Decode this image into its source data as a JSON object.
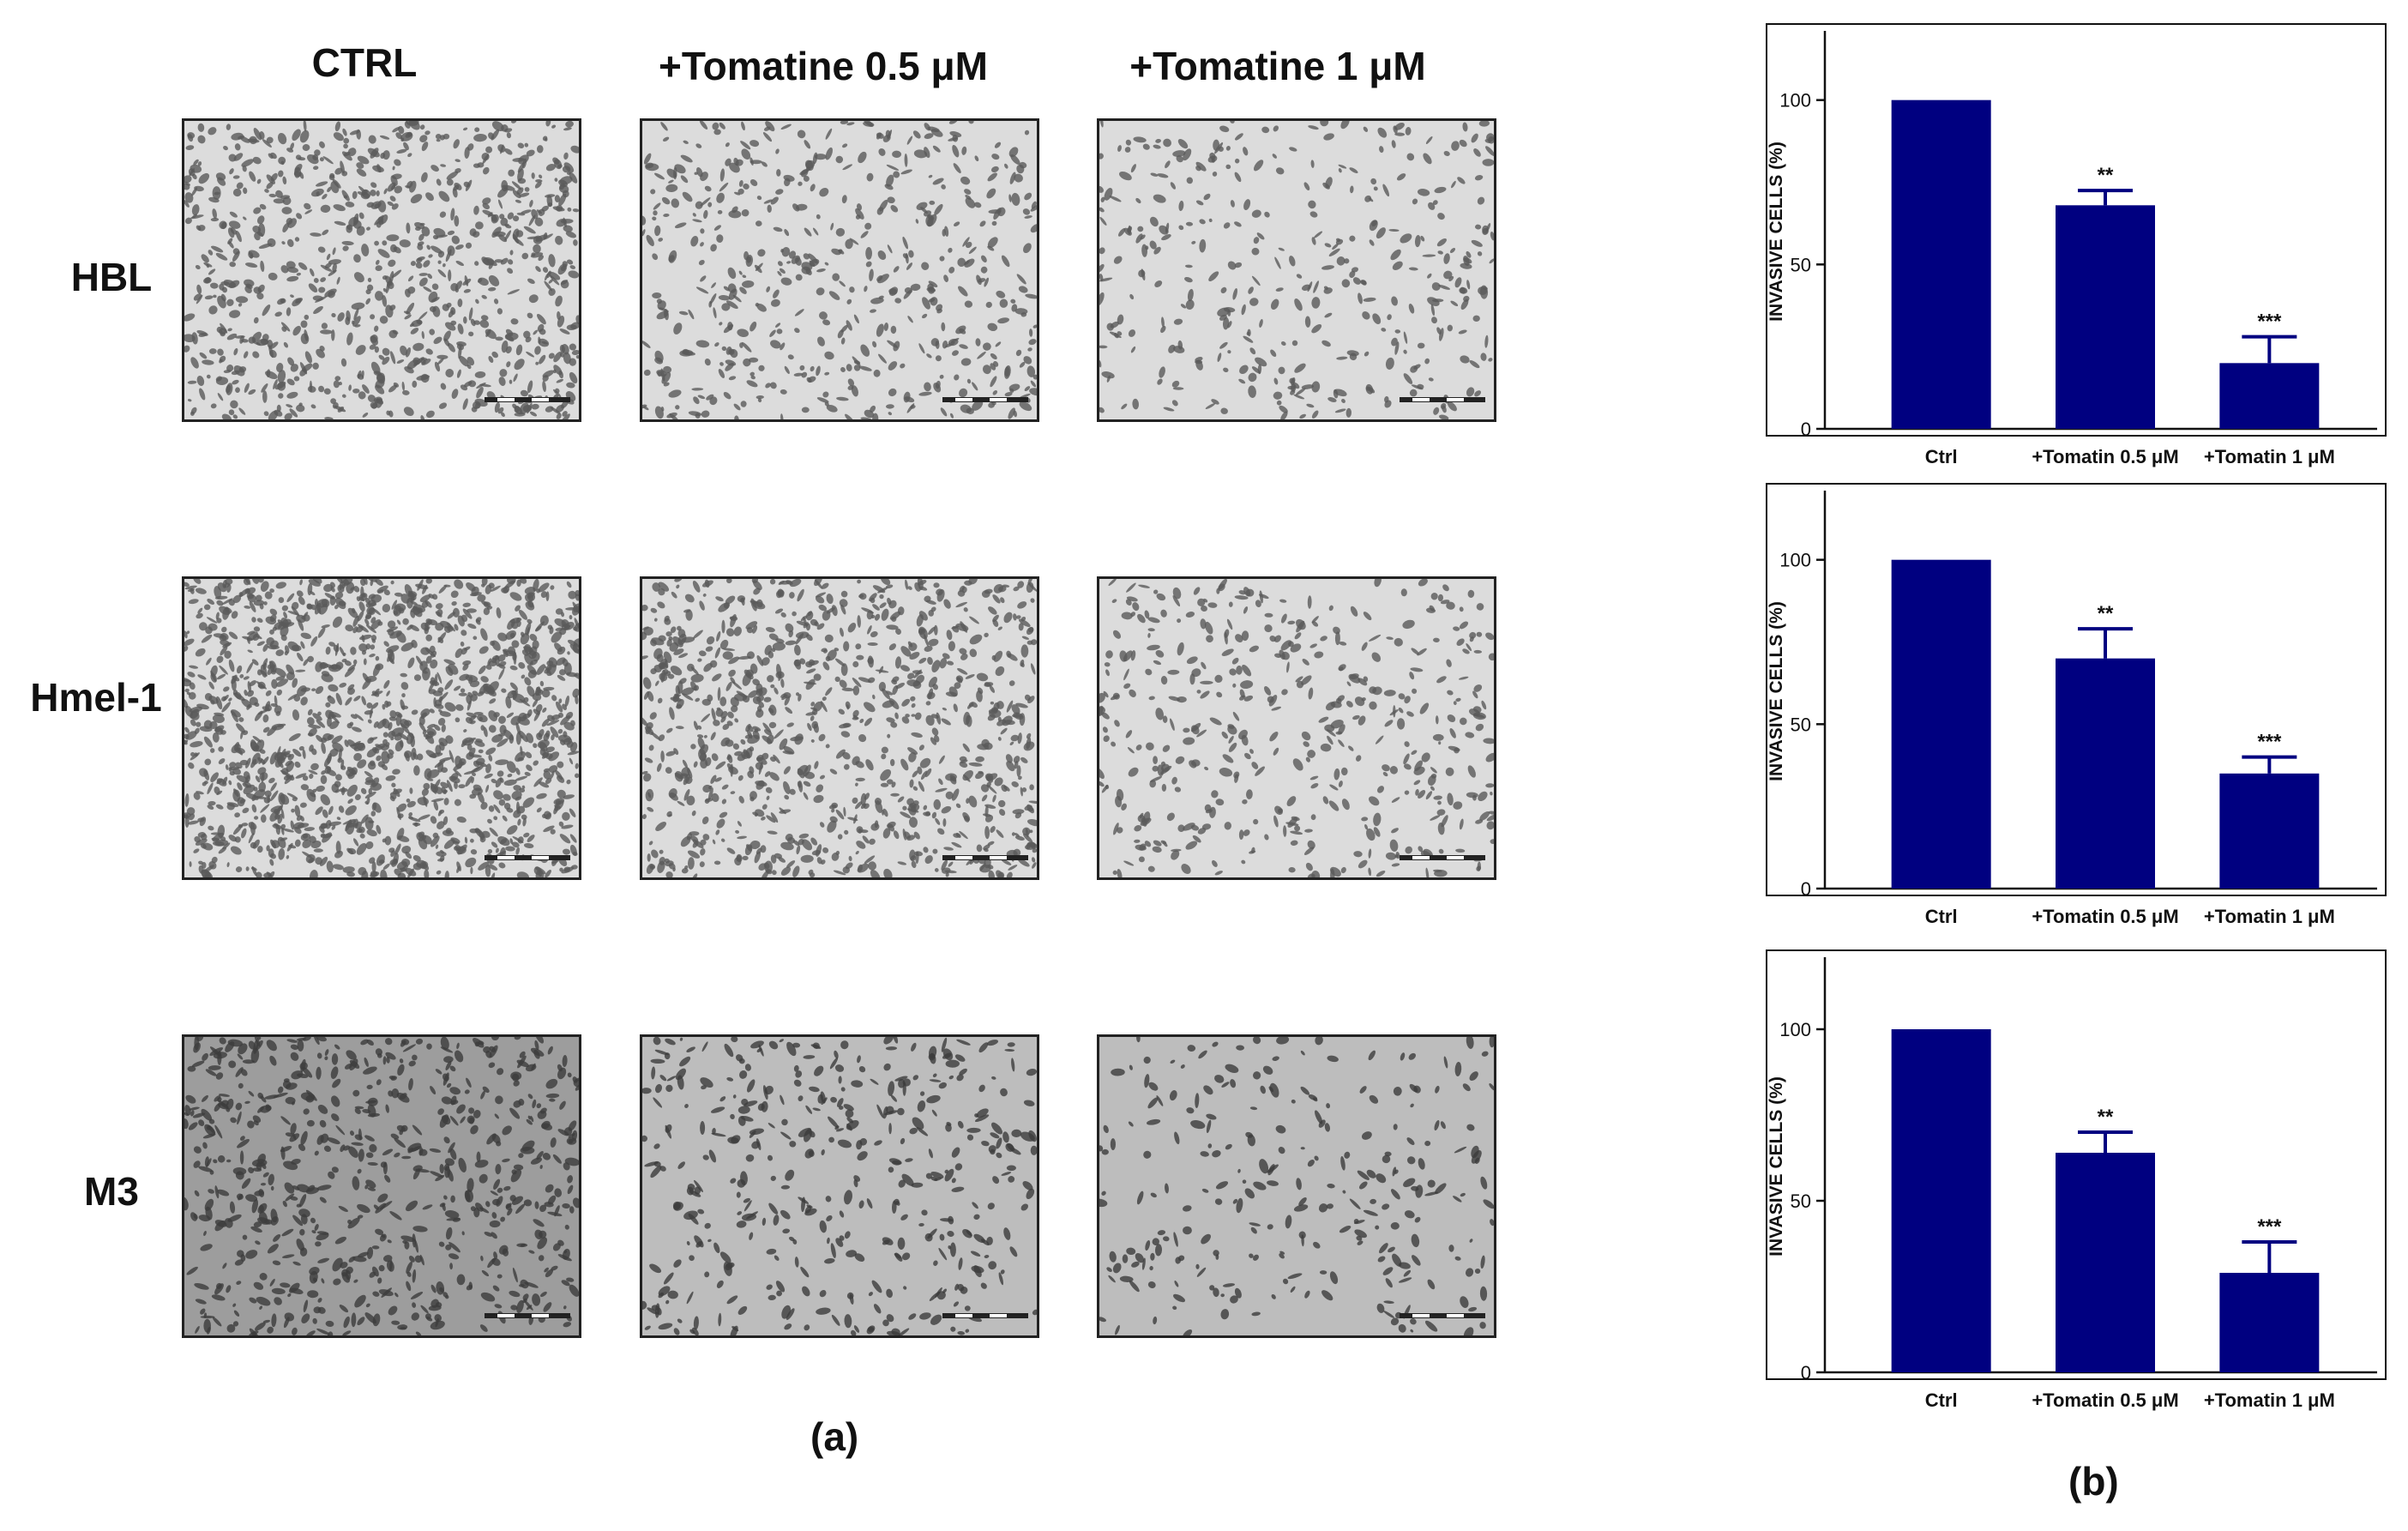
{
  "panel_a": {
    "label": "(a)",
    "columns": [
      "CTRL",
      "+Tomatine 0.5  μM",
      "+Tomatine 1 μM"
    ],
    "rows": [
      "HBL",
      "Hmel-1",
      "M3"
    ],
    "density": [
      [
        1.0,
        0.6,
        0.42
      ],
      [
        1.6,
        1.05,
        0.5
      ],
      [
        0.75,
        0.45,
        0.28
      ]
    ]
  },
  "panel_b": {
    "label": "(b)"
  },
  "colors": {
    "bar": "#000080",
    "axis": "#111111"
  },
  "chart_data": [
    {
      "type": "bar",
      "title": "",
      "xlabel": "",
      "ylabel": "INVASIVE CELLS (%)",
      "categories": [
        "Ctrl",
        "+Tomatin 0.5 μM",
        "+Tomatin 1 μM"
      ],
      "values": [
        100,
        68,
        20
      ],
      "errors": [
        0,
        4.5,
        8
      ],
      "significance": [
        "",
        "**",
        "***"
      ],
      "ylim": [
        0,
        120
      ],
      "yticks": [
        0,
        50,
        100
      ],
      "grid": false
    },
    {
      "type": "bar",
      "title": "",
      "xlabel": "",
      "ylabel": "INVASIVE CELLS (%)",
      "categories": [
        "Ctrl",
        "+Tomatin 0.5 μM",
        "+Tomatin 1 μM"
      ],
      "values": [
        100,
        70,
        35
      ],
      "errors": [
        0,
        9,
        5
      ],
      "significance": [
        "",
        "**",
        "***"
      ],
      "ylim": [
        0,
        120
      ],
      "yticks": [
        0,
        50,
        100
      ],
      "grid": false
    },
    {
      "type": "bar",
      "title": "",
      "xlabel": "",
      "ylabel": "INVASIVE CELLS (%)",
      "categories": [
        "Ctrl",
        "+Tomatin 0.5 μM",
        "+Tomatin 1 μM"
      ],
      "values": [
        100,
        64,
        29
      ],
      "errors": [
        0,
        6,
        9
      ],
      "significance": [
        "",
        "**",
        "***"
      ],
      "ylim": [
        0,
        120
      ],
      "yticks": [
        0,
        50,
        100
      ],
      "grid": false
    }
  ]
}
